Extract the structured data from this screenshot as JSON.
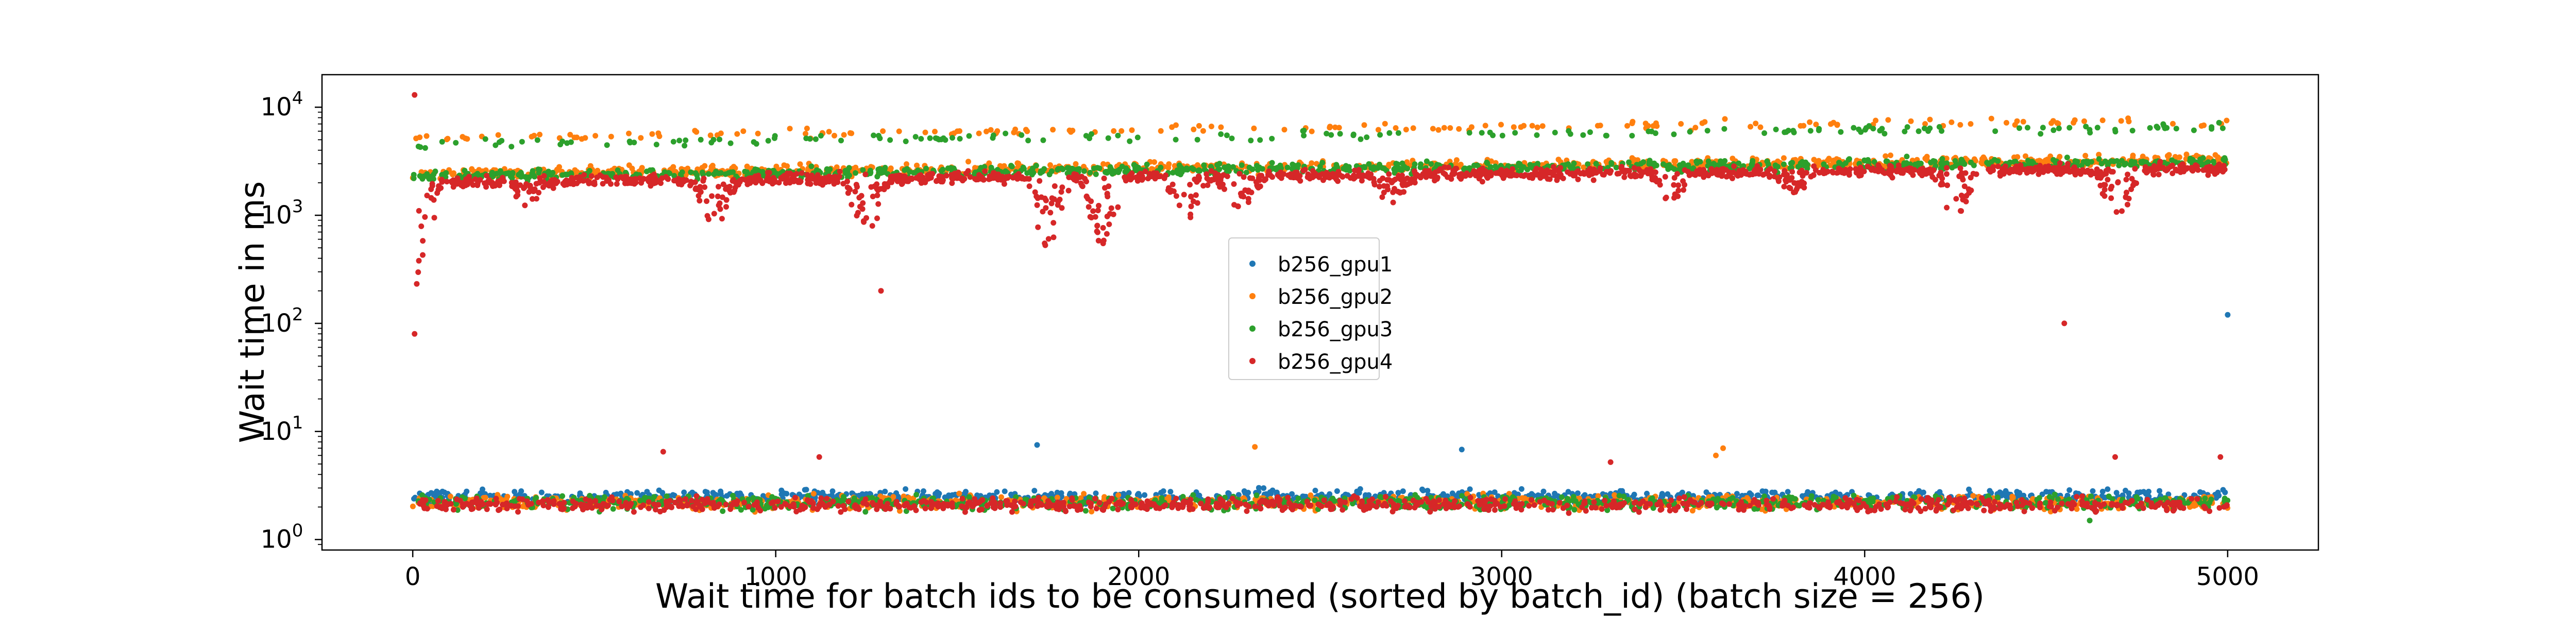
{
  "chart_data": {
    "type": "scatter",
    "title": "",
    "xlabel": "Wait time for batch ids to be consumed (sorted by batch_id) (batch size = 256)",
    "ylabel": "Wait time in ms",
    "xlim": [
      -250,
      5250
    ],
    "ylim": [
      0.8,
      20000
    ],
    "yscale": "log",
    "xticks": [
      0,
      1000,
      2000,
      3000,
      4000,
      5000
    ],
    "xtick_labels": [
      "0",
      "1000",
      "2000",
      "3000",
      "4000",
      "5000"
    ],
    "ytick_labels": [
      {
        "base": "10",
        "exp": "0"
      },
      {
        "base": "10",
        "exp": "1"
      },
      {
        "base": "10",
        "exp": "2"
      },
      {
        "base": "10",
        "exp": "3"
      },
      {
        "base": "10",
        "exp": "4"
      }
    ],
    "grid": false,
    "legend_position": "center",
    "series": [
      {
        "name": "b256_gpu1",
        "color": "#1f77b4",
        "low_band_ms": 2.5,
        "high_band_ms": null,
        "outliers": [
          [
            1720,
            7.5
          ],
          [
            2890,
            6.8
          ],
          [
            5000,
            120
          ]
        ]
      },
      {
        "name": "b256_gpu2",
        "color": "#ff7f0e",
        "low_band_ms": 2.2,
        "high_band_ms": 2400,
        "upper_band_ms": 5500,
        "outliers": [
          [
            2320,
            7.2
          ],
          [
            3610,
            7.0
          ],
          [
            3590,
            6.0
          ]
        ]
      },
      {
        "name": "b256_gpu3",
        "color": "#2ca02c",
        "low_band_ms": 2.2,
        "high_band_ms": 2300,
        "upper_band_ms": 4800,
        "outliers": [
          [
            4620,
            1.5
          ]
        ]
      },
      {
        "name": "b256_gpu4",
        "color": "#d62728",
        "low_band_ms": 2.1,
        "high_band_ms": 2000,
        "outliers": [
          [
            5,
            13000
          ],
          [
            5,
            80
          ],
          [
            690,
            6.5
          ],
          [
            1120,
            5.8
          ],
          [
            1290,
            200
          ],
          [
            3300,
            5.2
          ],
          [
            4550,
            100
          ],
          [
            4690,
            5.8
          ],
          [
            4980,
            5.8
          ]
        ],
        "dips": [
          [
            10,
            150
          ],
          [
            320,
            1200
          ],
          [
            830,
            600
          ],
          [
            1250,
            500
          ],
          [
            1750,
            400
          ],
          [
            1900,
            350
          ],
          [
            2130,
            700
          ],
          [
            2280,
            900
          ],
          [
            2700,
            1000
          ],
          [
            3470,
            1000
          ],
          [
            3800,
            1200
          ],
          [
            4250,
            600
          ],
          [
            4700,
            500
          ]
        ]
      }
    ]
  }
}
